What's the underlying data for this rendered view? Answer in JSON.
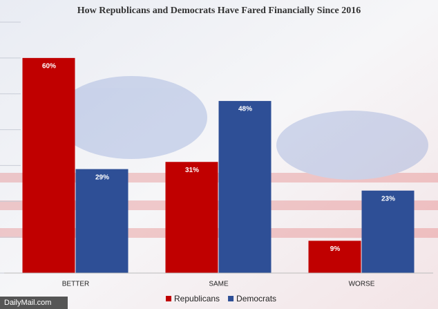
{
  "chart_data": {
    "type": "bar",
    "title": "How Republicans and Democrats Have Fared Financially Since 2016",
    "categories": [
      "BETTER",
      "SAME",
      "WORSE"
    ],
    "series": [
      {
        "name": "Republicans",
        "color": "#c00000",
        "values": [
          60,
          31,
          9
        ],
        "value_labels": [
          "60%",
          "31%",
          "9%"
        ]
      },
      {
        "name": "Democrats",
        "color": "#2e4f96",
        "values": [
          29,
          48,
          23
        ],
        "value_labels": [
          "29%",
          "48%",
          "23%"
        ]
      }
    ],
    "ylim": [
      0,
      70
    ],
    "yticks": [
      0,
      10,
      20,
      30,
      40,
      50,
      60,
      70
    ],
    "grid": true,
    "watermark": "DailyMail.com"
  }
}
